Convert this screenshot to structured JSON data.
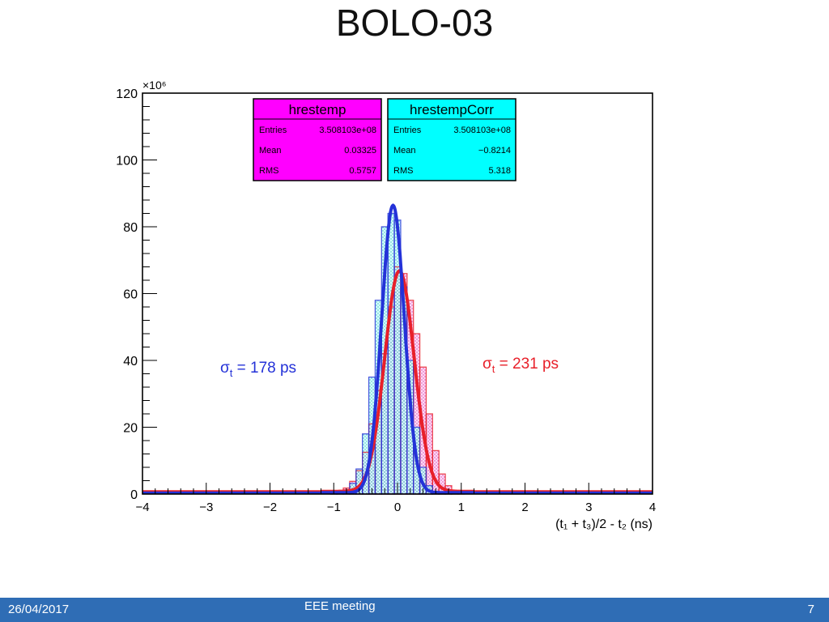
{
  "slide": {
    "title": "BOLO-03",
    "footer_date": "26/04/2017",
    "footer_center": "EEE meeting",
    "page_number": "7"
  },
  "colors": {
    "red_series": "#e8202a",
    "blue_series": "#2432d8",
    "magenta_box": "#ff00ff",
    "cyan_box": "#00ffff",
    "footer": "#2f6db5"
  },
  "chart_data": {
    "type": "histogram",
    "title": "",
    "xlabel": "(t₁ + t₃)/2 - t₂ (ns)",
    "ylabel": "",
    "y_multiplier": "×10⁶",
    "xlim": [
      -4,
      4
    ],
    "ylim": [
      0,
      120
    ],
    "x_ticks": [
      -4,
      -3,
      -2,
      -1,
      0,
      1,
      2,
      3,
      4
    ],
    "x_tick_labels": [
      "−4",
      "−3",
      "−2",
      "−1",
      "0",
      "1",
      "2",
      "3",
      "4"
    ],
    "y_ticks": [
      0,
      20,
      40,
      60,
      80,
      100,
      120
    ],
    "y_tick_labels": [
      "0",
      "20",
      "40",
      "60",
      "80",
      "100",
      "120"
    ],
    "grid": false,
    "x": [
      -1.0,
      -0.9,
      -0.8,
      -0.7,
      -0.6,
      -0.5,
      -0.4,
      -0.3,
      -0.2,
      -0.1,
      0.0,
      0.1,
      0.2,
      0.3,
      0.4,
      0.5,
      0.6,
      0.7,
      0.8,
      0.9,
      1.0
    ],
    "series": [
      {
        "name": "hrestemp",
        "color": "#e8202a",
        "values": [
          0.3,
          0.8,
          1.8,
          3.8,
          7.0,
          12.5,
          21,
          31,
          42,
          56,
          68,
          66,
          58,
          48,
          38,
          24,
          13,
          6,
          2.5,
          1,
          0.4
        ],
        "fit": {
          "center": 0.03,
          "sigma": 0.231,
          "amplitude": 66,
          "baseline": 0.8
        },
        "stats": [
          {
            "label": "Entries",
            "value": "3.508103e+08"
          },
          {
            "label": "Mean",
            "value": "0.03325"
          },
          {
            "label": "RMS",
            "value": "0.5757"
          }
        ]
      },
      {
        "name": "hrestempCorr",
        "color": "#2432d8",
        "values": [
          0.2,
          0.5,
          1.2,
          3.2,
          7.5,
          18,
          35,
          58,
          80,
          84,
          82,
          62,
          40,
          20,
          8,
          2.5,
          0.8,
          0.3,
          0.1,
          0,
          0
        ],
        "fit": {
          "center": -0.07,
          "sigma": 0.178,
          "amplitude": 86,
          "baseline": 0.4
        },
        "stats": [
          {
            "label": "Entries",
            "value": "3.508103e+08"
          },
          {
            "label": "Mean",
            "value": "−0.8214"
          },
          {
            "label": "RMS",
            "value": "5.318"
          }
        ]
      }
    ],
    "annotations": [
      {
        "id": "blue",
        "text_sigma": "σ",
        "text_sub": "t",
        "text_rest": " = 178 ps",
        "color": "#2432d8"
      },
      {
        "id": "red",
        "text_sigma": "σ",
        "text_sub": "t",
        "text_rest": " = 231 ps",
        "color": "#e8202a"
      }
    ]
  }
}
